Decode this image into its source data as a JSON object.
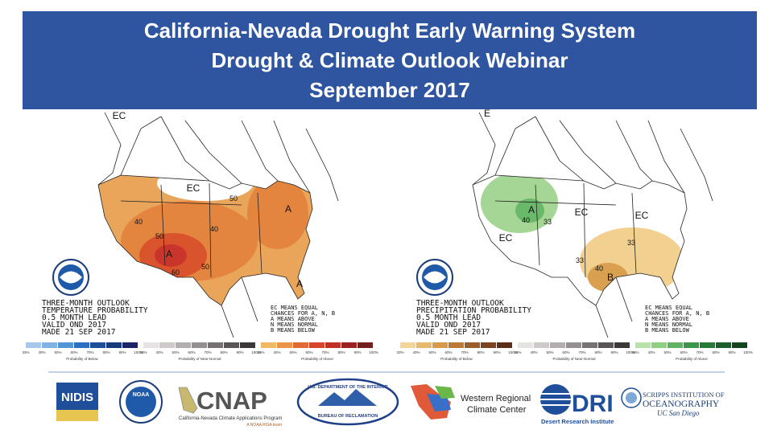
{
  "header": {
    "lines": [
      "California-Nevada Drought Early Warning System",
      "Drought & Climate Outlook Webinar",
      "September 2017"
    ],
    "background": "#2f55a0"
  },
  "maps": [
    {
      "outlook": [
        "THREE-MONTH OUTLOOK",
        "TEMPERATURE PROBABILITY",
        "0.5 MONTH LEAD",
        "VALID OND 2017",
        "MADE 21 SEP 2017"
      ],
      "legend": [
        "EC MEANS EQUAL",
        "CHANCES FOR A, N, B",
        "A MEANS ABOVE",
        "N MEANS NORMAL",
        "B MEANS BELOW"
      ],
      "labels": [
        "EC",
        "EC",
        "A",
        "A",
        "A",
        "40",
        "40",
        "50",
        "50",
        "50",
        "60"
      ],
      "scale_ticks": [
        "33%",
        "40%",
        "50%",
        "60%",
        "70%",
        "80%",
        "90%",
        "100%"
      ],
      "scale_captions": [
        "Probability of Below",
        "Probability of Near-Normal",
        "Probability of Above"
      ],
      "scale_colors": [
        [
          "#a6c8ea",
          "#7fb2e5",
          "#4f95d8",
          "#2a6fc0",
          "#1d4f9a",
          "#173a7a",
          "#1b2466"
        ],
        [
          "#e7e3e3",
          "#cfc9c9",
          "#b3adad",
          "#958f8f",
          "#777171",
          "#5a5454",
          "#3d3838"
        ],
        [
          "#f1b868",
          "#ec954a",
          "#e26a35",
          "#d7462a",
          "#c03026",
          "#9b2423",
          "#74201f"
        ]
      ]
    },
    {
      "outlook": [
        "THREE-MONTH OUTLOOK",
        "PRECIPITATION PROBABILITY",
        "0.5 MONTH LEAD",
        "VALID OND 2017",
        "MADE 21 SEP 2017"
      ],
      "legend": [
        "EC MEANS EQUAL",
        "CHANCES FOR A, N, B",
        "A MEANS ABOVE",
        "N MEANS NORMAL",
        "B MEANS BELOW"
      ],
      "labels": [
        "E",
        "EC",
        "EC",
        "EC",
        "A",
        "40",
        "33",
        "33",
        "33",
        "40",
        "B"
      ],
      "scale_ticks": [
        "33%",
        "40%",
        "50%",
        "60%",
        "70%",
        "80%",
        "90%",
        "100%"
      ],
      "scale_captions": [
        "Probability of Below",
        "Probability of Near-Normal",
        "Probability of Above"
      ],
      "scale_colors": [
        [
          "#f3d59a",
          "#e6b96b",
          "#d69a4a",
          "#bb7a35",
          "#9a5c28",
          "#7a4320",
          "#5a2f18"
        ],
        [
          "#e7e3e3",
          "#cfc9c9",
          "#b3adad",
          "#958f8f",
          "#777171",
          "#5a5454",
          "#3d3838"
        ],
        [
          "#b9e2a8",
          "#8fcf80",
          "#5fb25f",
          "#3a9648",
          "#257a38",
          "#1a5f2b",
          "#11451f"
        ]
      ]
    }
  ],
  "logos": {
    "nidis": "NIDIS",
    "noaa": "NOAA",
    "cnap": "CNAP",
    "cnap_sub": "California-Nevada Climate Applications Program",
    "cnap_team": "A NOAA RISA team",
    "reclamation_top": "U.S. DEPARTMENT OF THE INTERIOR",
    "reclamation_bottom": "BUREAU OF RECLAMATION",
    "wrcc": [
      "Western Regional",
      "Climate Center"
    ],
    "dri": "DRI",
    "dri_sub": "Desert Research Institute",
    "scripps": [
      "SCRIPPS INSTITUTION OF",
      "OCEANOGRAPHY",
      "UC San Diego"
    ]
  }
}
